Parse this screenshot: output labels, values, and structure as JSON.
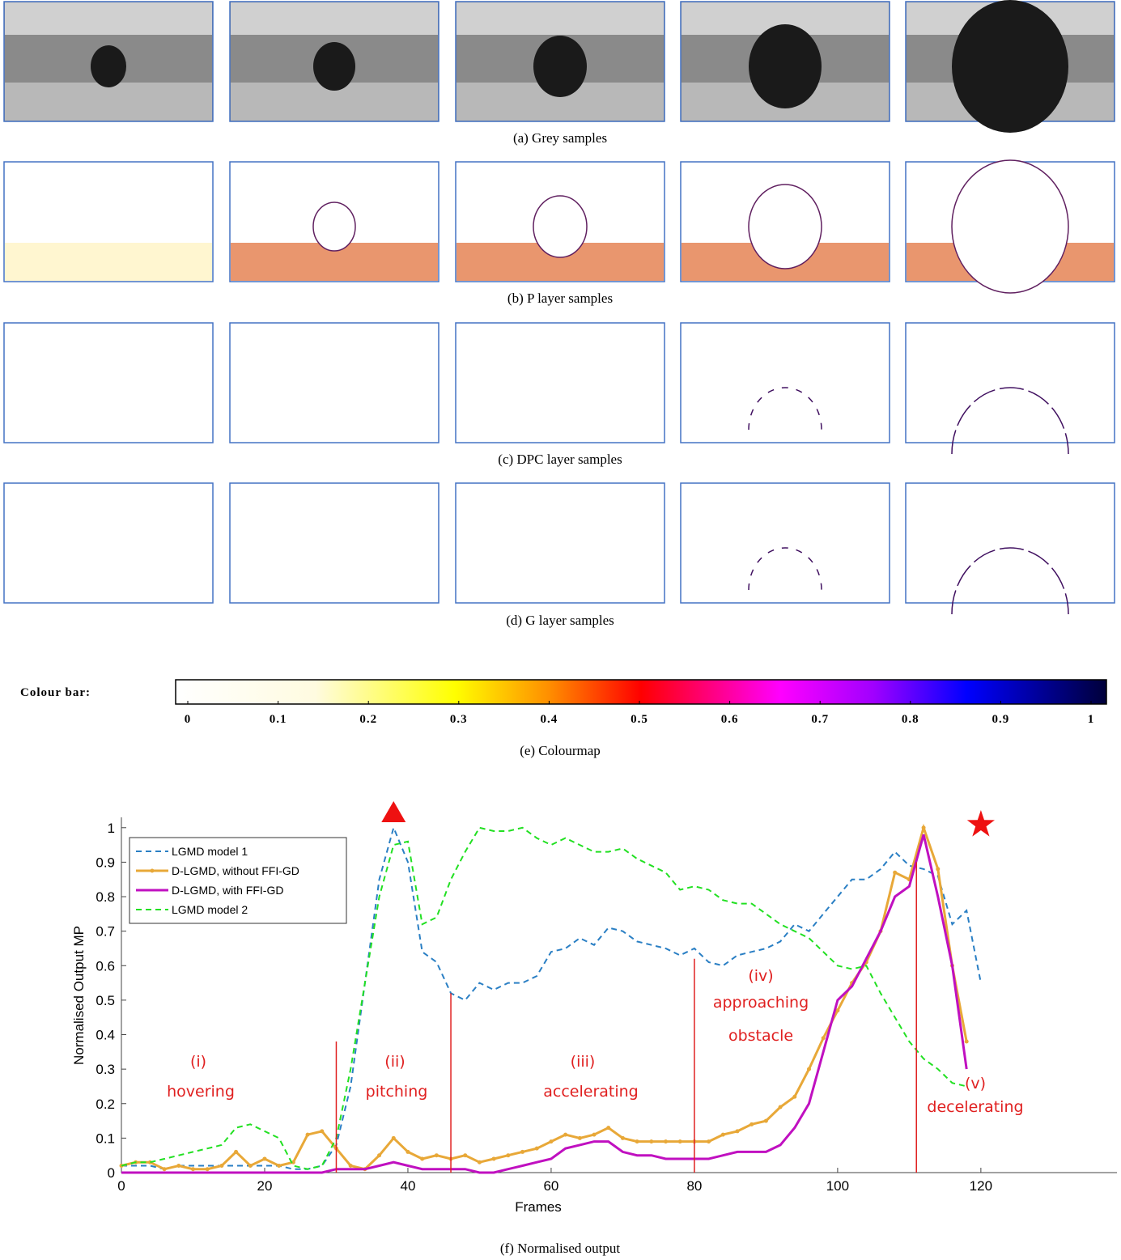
{
  "panels": [
    {
      "caption": "(a) Grey samples"
    },
    {
      "caption": "(b) P layer samples"
    },
    {
      "caption": "(c) DPC layer samples"
    },
    {
      "caption": "(d) G layer samples"
    }
  ],
  "colour_bar": {
    "label": "Colour bar:",
    "ticks": [
      0,
      0.1,
      0.2,
      0.3,
      0.4,
      0.5,
      0.6,
      0.7,
      0.8,
      0.9,
      1
    ],
    "caption": "(e) Colourmap"
  },
  "chart_data": {
    "type": "line",
    "caption": "(f) Normalised output",
    "x_label": "Frames",
    "y_label": "Normalised Output MP",
    "xlim": [
      0,
      139
    ],
    "ylim": [
      0,
      1.03
    ],
    "xticks": [
      0,
      20,
      40,
      60,
      80,
      100,
      120
    ],
    "yticks": [
      0,
      0.1,
      0.2,
      0.3,
      0.4,
      0.5,
      0.6,
      0.7,
      0.8,
      0.9,
      1
    ],
    "legend": "upper-left",
    "x": [
      0,
      2,
      4,
      6,
      8,
      10,
      12,
      14,
      16,
      18,
      20,
      22,
      24,
      26,
      28,
      30,
      32,
      34,
      36,
      38,
      40,
      42,
      44,
      46,
      48,
      50,
      52,
      54,
      56,
      58,
      60,
      62,
      64,
      66,
      68,
      70,
      72,
      74,
      76,
      78,
      80,
      82,
      84,
      86,
      88,
      90,
      92,
      94,
      96,
      98,
      100,
      102,
      104,
      106,
      108,
      110,
      112,
      114,
      116,
      118,
      120
    ],
    "series": [
      {
        "name": "LGMD model 1",
        "color": "#2a7fc4",
        "dashed": true,
        "markers": false,
        "values": [
          0.02,
          0.02,
          0.02,
          0.01,
          0.02,
          0.02,
          0.02,
          0.02,
          0.02,
          0.02,
          0.02,
          0.02,
          0.01,
          0.01,
          0.02,
          0.08,
          0.25,
          0.55,
          0.85,
          1.0,
          0.9,
          0.64,
          0.61,
          0.52,
          0.5,
          0.55,
          0.53,
          0.55,
          0.55,
          0.57,
          0.64,
          0.65,
          0.68,
          0.66,
          0.71,
          0.7,
          0.67,
          0.66,
          0.65,
          0.63,
          0.65,
          0.61,
          0.6,
          0.63,
          0.64,
          0.65,
          0.67,
          0.72,
          0.7,
          0.75,
          0.8,
          0.85,
          0.85,
          0.88,
          0.93,
          0.89,
          0.88,
          0.86,
          0.72,
          0.76,
          0.55
        ]
      },
      {
        "name": "D-LGMD, without FFI-GD",
        "color": "#e8a838",
        "dashed": false,
        "markers": true,
        "values": [
          0.02,
          0.03,
          0.03,
          0.01,
          0.02,
          0.01,
          0.01,
          0.02,
          0.06,
          0.02,
          0.04,
          0.02,
          0.03,
          0.11,
          0.12,
          0.07,
          0.02,
          0.01,
          0.05,
          0.1,
          0.06,
          0.04,
          0.05,
          0.04,
          0.05,
          0.03,
          0.04,
          0.05,
          0.06,
          0.07,
          0.09,
          0.11,
          0.1,
          0.11,
          0.13,
          0.1,
          0.09,
          0.09,
          0.09,
          0.09,
          0.09,
          0.09,
          0.11,
          0.12,
          0.14,
          0.15,
          0.19,
          0.22,
          0.3,
          0.39,
          0.47,
          0.55,
          0.61,
          0.7,
          0.87,
          0.85,
          1.0,
          0.88,
          0.6,
          0.38,
          null
        ]
      },
      {
        "name": "D-LGMD, with FFI-GD",
        "color": "#c010c0",
        "dashed": false,
        "markers": false,
        "values": [
          0,
          0,
          0,
          0,
          0,
          0,
          0,
          0,
          0,
          0,
          0,
          0,
          0,
          0,
          0,
          0.01,
          0.01,
          0.01,
          0.02,
          0.03,
          0.02,
          0.01,
          0.01,
          0.01,
          0.01,
          0,
          0,
          0.01,
          0.02,
          0.03,
          0.04,
          0.07,
          0.08,
          0.09,
          0.09,
          0.06,
          0.05,
          0.05,
          0.04,
          0.04,
          0.04,
          0.04,
          0.05,
          0.06,
          0.06,
          0.06,
          0.08,
          0.13,
          0.2,
          0.35,
          0.5,
          0.54,
          0.62,
          0.7,
          0.8,
          0.83,
          0.98,
          0.8,
          0.6,
          0.3,
          null
        ]
      },
      {
        "name": "LGMD model 2",
        "color": "#22e022",
        "dashed": true,
        "markers": false,
        "values": [
          0.02,
          0.03,
          0.03,
          0.04,
          0.05,
          0.06,
          0.07,
          0.08,
          0.13,
          0.14,
          0.12,
          0.1,
          0.02,
          0.01,
          0.02,
          0.1,
          0.3,
          0.55,
          0.8,
          0.95,
          0.96,
          0.72,
          0.74,
          0.85,
          0.93,
          1.0,
          0.99,
          0.99,
          1.0,
          0.97,
          0.95,
          0.97,
          0.95,
          0.93,
          0.93,
          0.94,
          0.91,
          0.89,
          0.87,
          0.82,
          0.83,
          0.82,
          0.79,
          0.78,
          0.78,
          0.75,
          0.72,
          0.7,
          0.68,
          0.64,
          0.6,
          0.59,
          0.6,
          0.52,
          0.45,
          0.38,
          0.33,
          0.3,
          0.26,
          0.25,
          null
        ]
      }
    ],
    "phase_lines": [
      {
        "x": 30,
        "top": 0.38
      },
      {
        "x": 46,
        "top": 0.52
      },
      {
        "x": 80,
        "top": 0.62
      },
      {
        "x": 111,
        "top": 0.9
      }
    ],
    "event_markers": [
      {
        "shape": "triangle",
        "x": 38
      },
      {
        "shape": "star",
        "x": 120
      }
    ],
    "annotations": [
      "(i)",
      "hovering",
      "(ii)",
      "pitching",
      "(iii)",
      "accelerating",
      "(iv)",
      "approaching",
      "obstacle",
      "(v)",
      "decelerating"
    ]
  }
}
